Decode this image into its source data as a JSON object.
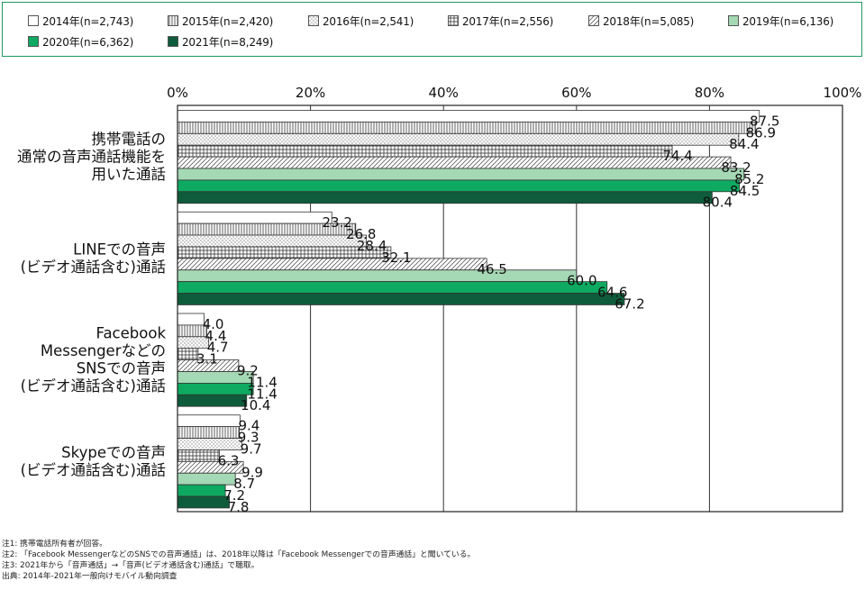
{
  "legend": [
    {
      "label": "2014年(n=2,743)",
      "fill": "#ffffff",
      "pattern": "none"
    },
    {
      "label": "2015年(n=2,420)",
      "fill": "#ffffff",
      "pattern": "vlines"
    },
    {
      "label": "2016年(n=2,541)",
      "fill": "#ffffff",
      "pattern": "dots"
    },
    {
      "label": "2017年(n=2,556)",
      "fill": "#ffffff",
      "pattern": "grid"
    },
    {
      "label": "2018年(n=5,085)",
      "fill": "#ffffff",
      "pattern": "diag"
    },
    {
      "label": "2019年(n=6,136)",
      "fill": "#a5d8b4",
      "pattern": "none"
    },
    {
      "label": "2020年(n=6,362)",
      "fill": "#0eaa61",
      "pattern": "none"
    },
    {
      "label": "2021年(n=8,249)",
      "fill": "#0e5c3b",
      "pattern": "none"
    }
  ],
  "chart_data": {
    "type": "bar",
    "orientation": "horizontal",
    "xlim": [
      0,
      100
    ],
    "x_ticks": [
      "0%",
      "20%",
      "40%",
      "60%",
      "80%",
      "100%"
    ],
    "categories": [
      [
        "携帯電話の",
        "通常の音声通話機能を",
        "用いた通話"
      ],
      [
        "LINEでの音声",
        "(ビデオ通話含む)通話"
      ],
      [
        "Facebook",
        "Messengerなどの",
        "SNSでの音声",
        "(ビデオ通話含む)通話"
      ],
      [
        "Skypeでの音声",
        "(ビデオ通話含む)通話"
      ]
    ],
    "series": [
      {
        "name": "2014年(n=2,743)",
        "values": [
          87.5,
          23.2,
          4.0,
          9.4
        ]
      },
      {
        "name": "2015年(n=2,420)",
        "values": [
          86.9,
          26.8,
          4.4,
          9.3
        ]
      },
      {
        "name": "2016年(n=2,541)",
        "values": [
          84.4,
          28.4,
          4.7,
          9.7
        ]
      },
      {
        "name": "2017年(n=2,556)",
        "values": [
          74.4,
          32.1,
          3.1,
          6.3
        ]
      },
      {
        "name": "2018年(n=5,085)",
        "values": [
          83.2,
          46.5,
          9.2,
          9.9
        ]
      },
      {
        "name": "2019年(n=6,136)",
        "values": [
          85.2,
          60.0,
          11.4,
          8.7
        ]
      },
      {
        "name": "2020年(n=6,362)",
        "values": [
          84.5,
          64.6,
          11.4,
          7.2
        ]
      },
      {
        "name": "2021年(n=8,249)",
        "values": [
          80.4,
          67.2,
          10.4,
          7.8
        ]
      }
    ],
    "value_labels": [
      [
        "87.5",
        "86.9",
        "84.4",
        "74.4",
        "83.2",
        "85.2",
        "84.5",
        "80.4"
      ],
      [
        "23.2",
        "26.8",
        "28.4",
        "32.1",
        "46.5",
        "60.0",
        "64.6",
        "67.2"
      ],
      [
        "4.0",
        "4.4",
        "4.7",
        "3.1",
        "9.2",
        "11.4",
        "11.4",
        "10.4"
      ],
      [
        "9.4",
        "9.3",
        "9.7",
        "6.3",
        "9.9",
        "8.7",
        "7.2",
        "7.8"
      ]
    ],
    "grid": true,
    "legend_position": "top"
  },
  "notes": [
    "注1: 携帯電話所有者が回答。",
    "注2: 「Facebook MessengerなどのSNSでの音声通話」は、2018年以降は「Facebook Messengerでの音声通話」と聞いている。",
    "注3: 2021年から「音声通話」→「音声(ビデオ通話含む)通話」で聴取。",
    "出典: 2014年-2021年一般向けモバイル動向調査"
  ]
}
